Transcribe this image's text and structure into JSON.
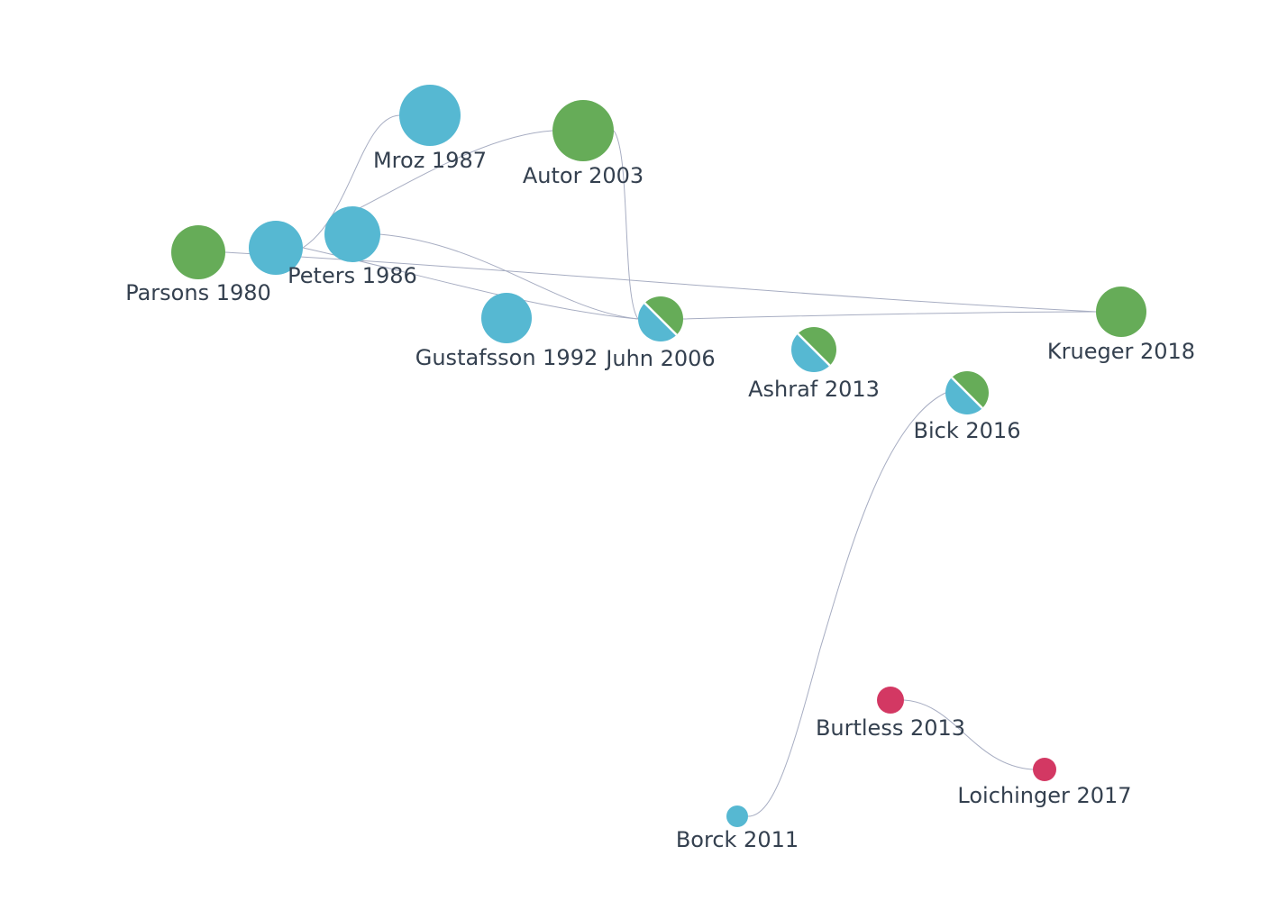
{
  "colors": {
    "blue": "#56b8d2",
    "green": "#66ac58",
    "red": "#d33863",
    "edge": "#a7adc2",
    "label": "#34404f",
    "split": "#ffffff"
  },
  "nodes": [
    {
      "id": "parsons1980",
      "name": "parsons-1980-node",
      "label": "Parsons 1980",
      "colors": [
        "green"
      ]
    },
    {
      "id": "peters1986",
      "name": "peters-1986-node",
      "label": "Peters 1986",
      "colors": [
        "blue"
      ]
    },
    {
      "id": "mroz1987",
      "name": "mroz-1987-node",
      "label": "Mroz 1987",
      "colors": [
        "blue"
      ]
    },
    {
      "id": "autor2003",
      "name": "autor-2003-node",
      "label": "Autor 2003",
      "colors": [
        "green"
      ]
    },
    {
      "id": "gustafsson1992",
      "name": "gustafsson-1992-node",
      "label": "Gustafsson 1992",
      "colors": [
        "blue"
      ]
    },
    {
      "id": "juhn2006",
      "name": "juhn-2006-node",
      "label": "Juhn 2006",
      "colors": [
        "blue",
        "green"
      ]
    },
    {
      "id": "ashraf2013",
      "name": "ashraf-2013-node",
      "label": "Ashraf 2013",
      "colors": [
        "blue",
        "green"
      ]
    },
    {
      "id": "krueger2018",
      "name": "krueger-2018-node",
      "label": "Krueger 2018",
      "colors": [
        "green"
      ]
    },
    {
      "id": "bick2016",
      "name": "bick-2016-node",
      "label": "Bick 2016",
      "colors": [
        "blue",
        "green"
      ]
    },
    {
      "id": "burtless2013",
      "name": "burtless-2013-node",
      "label": "Burtless 2013",
      "colors": [
        "red"
      ]
    },
    {
      "id": "loichinger2017",
      "name": "loichinger-2017-node",
      "label": "Loichinger 2017",
      "colors": [
        "red"
      ]
    },
    {
      "id": "borck2011",
      "name": "borck-2011-node",
      "label": "Borck 2011",
      "colors": [
        "blue"
      ]
    },
    {
      "id": "node_a",
      "name": "unlabeled-node",
      "label": "",
      "colors": [
        "blue"
      ]
    }
  ],
  "edges": [
    {
      "from": "parsons1980",
      "to": "krueger2018"
    },
    {
      "from": "peters1986",
      "to": "mroz1987"
    },
    {
      "from": "peters1986",
      "to": "juhn2006"
    },
    {
      "from": "node_a",
      "to": "autor2003"
    },
    {
      "from": "node_a",
      "to": "juhn2006"
    },
    {
      "from": "autor2003",
      "to": "juhn2006"
    },
    {
      "from": "juhn2006",
      "to": "krueger2018"
    },
    {
      "from": "bick2016",
      "to": "borck2011"
    },
    {
      "from": "burtless2013",
      "to": "loichinger2017"
    }
  ]
}
